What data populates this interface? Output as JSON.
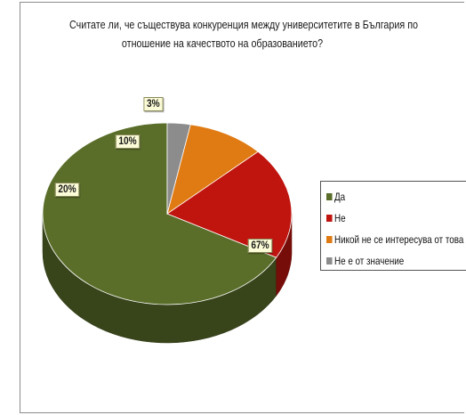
{
  "chart_data": {
    "type": "pie",
    "title_lines": [
      "Считате ли, че съществува конкуренция между университетите в България по",
      "отношение на качеството на образованието?"
    ],
    "categories": [
      "Да",
      "Не",
      "Никой не се интересува от това",
      "Не е от значение"
    ],
    "values": [
      67,
      20,
      10,
      3
    ],
    "data_labels": [
      "67%",
      "20%",
      "10%",
      "3%"
    ],
    "colors": [
      "#5a6e2a",
      "#c0150f",
      "#e07a12",
      "#8c8c8c"
    ],
    "legend_position": "right",
    "style": "3d"
  }
}
